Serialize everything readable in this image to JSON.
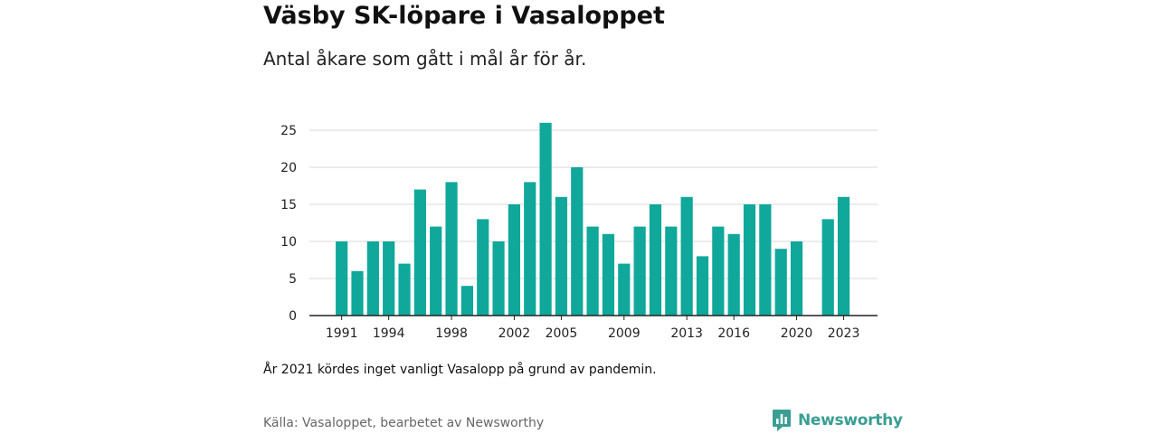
{
  "title": "Väsby SK-löpare i Vasaloppet",
  "subtitle": "Antal åkare som gått i mål år för år.",
  "note": "År 2021 kördes inget vanligt Vasalopp på grund av pandemin.",
  "source": "Källa: Vasaloppet, bearbetet av Newsworthy",
  "logo": {
    "text": "Newsworthy",
    "icon": "newsworthy-chart-bubble-icon"
  },
  "colors": {
    "bar": "#0fa89b",
    "brand": "#3a9e93",
    "grid": "#d9d9d9",
    "axis": "#222222"
  },
  "chart_data": {
    "type": "bar",
    "x": [
      1991,
      1992,
      1993,
      1994,
      1995,
      1996,
      1997,
      1998,
      1999,
      2000,
      2001,
      2002,
      2003,
      2004,
      2005,
      2006,
      2007,
      2008,
      2009,
      2010,
      2011,
      2012,
      2013,
      2014,
      2015,
      2016,
      2017,
      2018,
      2019,
      2020,
      2021,
      2022,
      2023
    ],
    "values": [
      10,
      6,
      10,
      10,
      7,
      17,
      12,
      18,
      4,
      13,
      10,
      15,
      18,
      26,
      16,
      20,
      12,
      11,
      7,
      12,
      15,
      12,
      16,
      8,
      12,
      11,
      15,
      15,
      9,
      10,
      null,
      13,
      16
    ],
    "x_tick_labels": [
      "1991",
      "1994",
      "1998",
      "2002",
      "2005",
      "2009",
      "2013",
      "2016",
      "2020",
      "2023"
    ],
    "y_ticks": [
      0,
      5,
      10,
      15,
      20,
      25
    ],
    "ylim": [
      0,
      27
    ],
    "grid": true
  }
}
